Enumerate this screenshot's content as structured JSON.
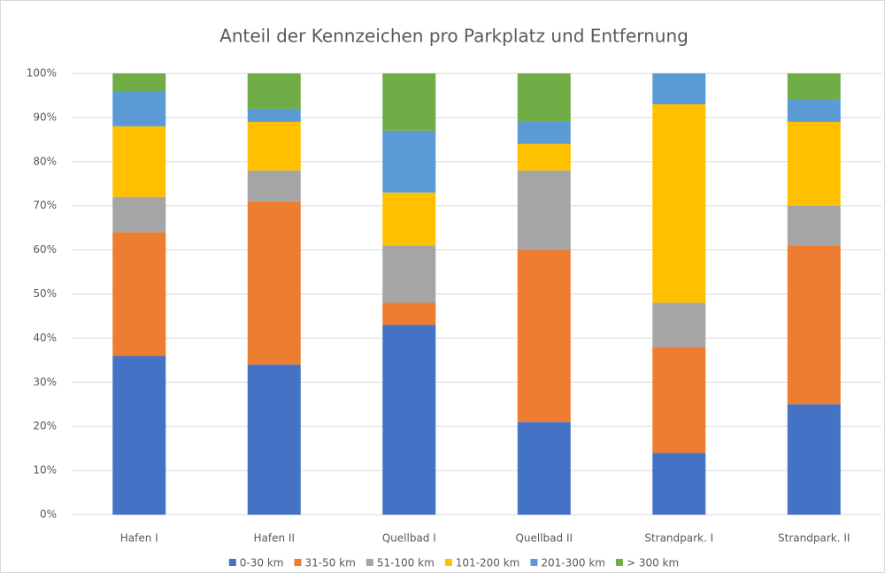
{
  "chart_data": {
    "type": "stacked_bar",
    "title": "Anteil der Kennzeichen pro Parkplatz und Entfernung",
    "categories": [
      "Hafen I",
      "Hafen II",
      "Quellbad I",
      "Quellbad II",
      "Strandpark. I",
      "Strandpark. II"
    ],
    "series": [
      {
        "name": "0-30 km",
        "color": "#4472c4",
        "values": [
          36,
          34,
          43,
          21,
          14,
          25
        ]
      },
      {
        "name": "31-50 km",
        "color": "#ed7d31",
        "values": [
          28,
          37,
          5,
          39,
          24,
          36
        ]
      },
      {
        "name": "51-100 km",
        "color": "#a5a5a5",
        "values": [
          8,
          7,
          13,
          18,
          10,
          9
        ]
      },
      {
        "name": "101-200 km",
        "color": "#ffc000",
        "values": [
          16,
          11,
          12,
          6,
          45,
          19
        ]
      },
      {
        "name": "201-300 km",
        "color": "#5b9bd5",
        "values": [
          8,
          3,
          14,
          5,
          7,
          5
        ]
      },
      {
        "name": "> 300 km",
        "color": "#70ad47",
        "values": [
          4,
          8,
          13,
          11,
          0,
          6
        ]
      }
    ],
    "ylim": [
      0,
      100
    ],
    "yticks": [
      {
        "value": 0,
        "label": "0%"
      },
      {
        "value": 10,
        "label": "10%"
      },
      {
        "value": 20,
        "label": "20%"
      },
      {
        "value": 30,
        "label": "30%"
      },
      {
        "value": 40,
        "label": "40%"
      },
      {
        "value": 50,
        "label": "50%"
      },
      {
        "value": 60,
        "label": "60%"
      },
      {
        "value": 70,
        "label": "70%"
      },
      {
        "value": 80,
        "label": "80%"
      },
      {
        "value": 90,
        "label": "90%"
      },
      {
        "value": 100,
        "label": "100%"
      }
    ],
    "grid": true,
    "legend": "bottom"
  }
}
